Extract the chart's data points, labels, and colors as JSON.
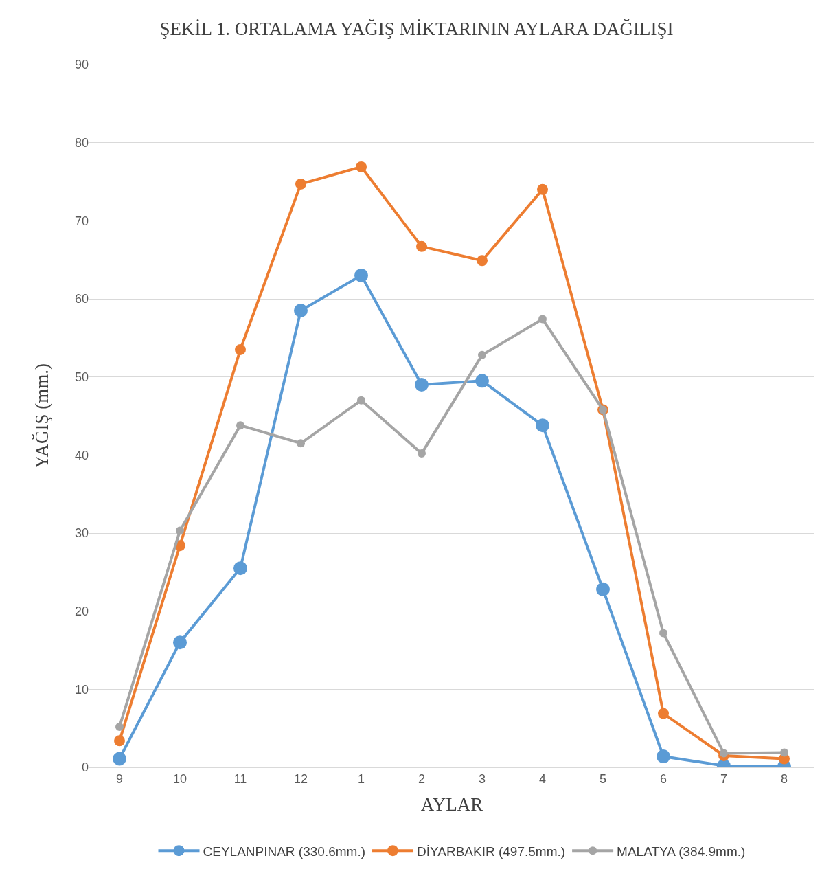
{
  "chart_data": {
    "type": "line",
    "title": "ŞEKİL 1. ORTALAMA YAĞIŞ MİKTARININ AYLARA DAĞILIŞI",
    "xlabel": "AYLAR",
    "ylabel": "YAĞIŞ (mm.)",
    "categories": [
      "9",
      "10",
      "11",
      "12",
      "1",
      "2",
      "3",
      "4",
      "5",
      "6",
      "7",
      "8"
    ],
    "series": [
      {
        "name": "CEYLANPINAR (330.6mm.)",
        "color": "#5b9bd5",
        "values": [
          1.1,
          16.0,
          25.5,
          58.5,
          63.0,
          49.0,
          49.5,
          43.8,
          22.8,
          1.4,
          0.2,
          0.1
        ]
      },
      {
        "name": "DİYARBAKIR (497.5mm.)",
        "color": "#ed7d31",
        "values": [
          3.4,
          28.4,
          53.5,
          74.7,
          76.9,
          66.7,
          64.9,
          74.0,
          45.8,
          6.9,
          1.5,
          1.1
        ]
      },
      {
        "name": "MALATYA (384.9mm.)",
        "color": "#a5a5a5",
        "values": [
          5.2,
          30.3,
          43.8,
          41.5,
          47.0,
          40.2,
          52.8,
          57.4,
          45.8,
          17.2,
          1.8,
          1.9
        ]
      }
    ],
    "ylim": [
      0,
      90
    ],
    "yticks": [
      0,
      10,
      20,
      30,
      40,
      50,
      60,
      70,
      80,
      90
    ],
    "grid": "y",
    "legend": "bottom",
    "marker": "circle",
    "line_style": "solid"
  }
}
